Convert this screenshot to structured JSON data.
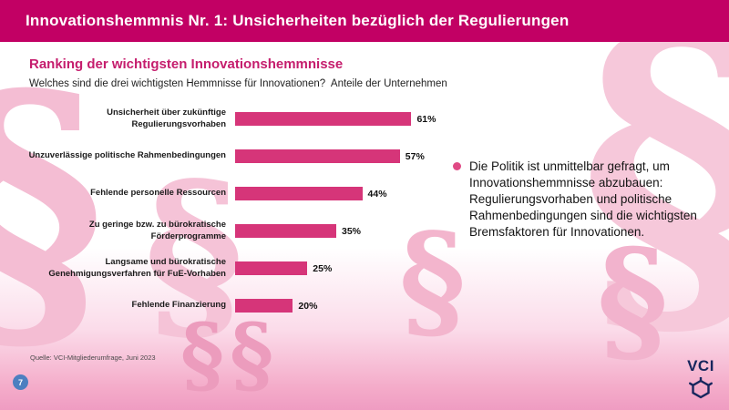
{
  "header": {
    "title": "Innovationshemmnis Nr. 1: Unsicherheiten bezüglich der Regulierungen",
    "bg_color": "#c20064"
  },
  "main": {
    "title": "Ranking der wichtigsten Innovationshemmnisse",
    "subtitle": "Welches sind die drei wichtigsten Hemmnisse für Innovationen?  Anteile der Unternehmen",
    "annotation": "Die Politik ist unmittelbar gefragt, um Innovationshemmnisse abzubauen: Regulierungsvorhaben und politische Rahmenbedingungen sind die wichtigsten Bremsfaktoren für Innovationen.",
    "source": "Quelle: VCI-Mitgliederumfrage, Juni 2023",
    "page_number": "7",
    "logo_text": "VCI",
    "accent_color": "#c51d6d",
    "bullet_color": "#e04a85",
    "page_badge_color": "#4d7fc0",
    "logo_color": "#17265d",
    "watermark_glyph": "§"
  },
  "chart_data": {
    "type": "bar",
    "orientation": "horizontal",
    "title": "Ranking der wichtigsten Innovationshemmnisse",
    "xlabel": "",
    "ylabel": "",
    "xlim": [
      0,
      70
    ],
    "grid": false,
    "legend": "none",
    "bar_color": "#d63579",
    "categories": [
      "Unsicherheit über zukünftige Regulierungsvorhaben",
      "Unzuverlässige politische Rahmenbedingungen",
      "Fehlende personelle Ressourcen",
      "Zu geringe bzw. zu bürokratische Förderprogramme",
      "Langsame und bürokratische Genehmigungsverfahren für FuE-Vorhaben",
      "Fehlende Finanzierung"
    ],
    "values": [
      61,
      57,
      44,
      35,
      25,
      20
    ],
    "value_labels": [
      "61%",
      "57%",
      "44%",
      "35%",
      "25%",
      "20%"
    ]
  }
}
